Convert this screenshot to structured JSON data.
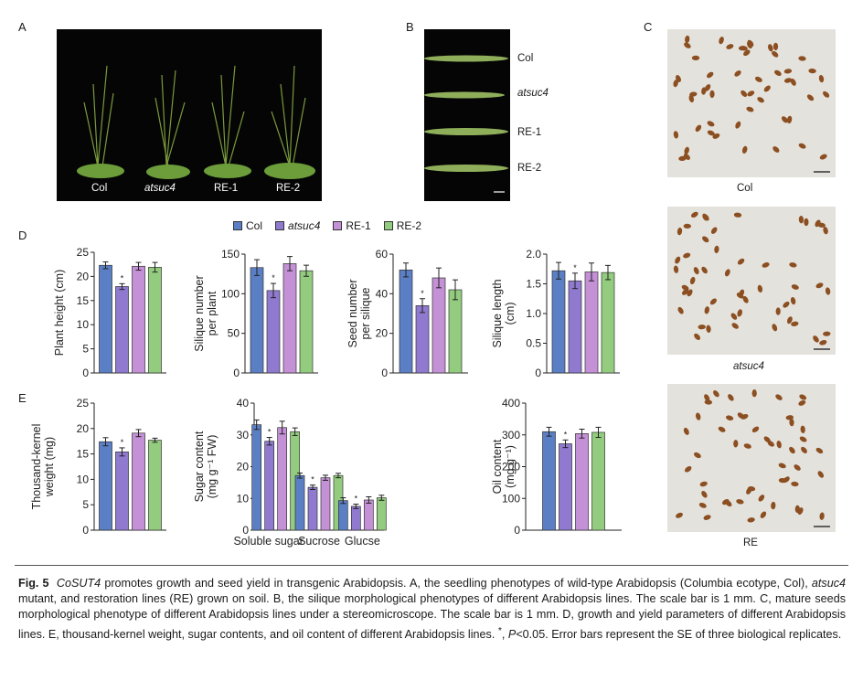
{
  "panels": {
    "A": {
      "letter": "A",
      "labels": [
        "Col",
        "atsuc4",
        "RE-1",
        "RE-2"
      ]
    },
    "B": {
      "letter": "B",
      "labels": [
        "Col",
        "atsuc4",
        "RE-1",
        "RE-2"
      ]
    },
    "C": {
      "letter": "C",
      "labels": [
        "Col",
        "atsuc4",
        "RE"
      ]
    },
    "D": {
      "letter": "D"
    },
    "E": {
      "letter": "E"
    }
  },
  "legend": [
    "Col",
    "atsuc4",
    "RE-1",
    "RE-2"
  ],
  "colors": {
    "Col": "#5b7fc4",
    "atsuc4": "#8f7ad0",
    "RE-1": "#c490d6",
    "RE-2": "#93cc7e"
  },
  "chart_data": [
    {
      "type": "bar",
      "ylabel": "Plant height (cm)",
      "ylim": [
        0,
        25
      ],
      "yticks": [
        "0",
        "5",
        "10",
        "15",
        "20",
        "25"
      ],
      "categories": [
        ""
      ],
      "series": [
        {
          "name": "Col",
          "values": [
            22.3
          ]
        },
        {
          "name": "atsuc4",
          "values": [
            17.9
          ]
        },
        {
          "name": "RE-1",
          "values": [
            22.1
          ]
        },
        {
          "name": "RE-2",
          "values": [
            21.9
          ]
        }
      ],
      "errors": [
        [
          0.7
        ],
        [
          0.6
        ],
        [
          0.8
        ],
        [
          1.0
        ]
      ],
      "significant": [
        false,
        true,
        false,
        false
      ]
    },
    {
      "type": "bar",
      "ylabel": "Silique number per plant",
      "ylim": [
        0,
        150
      ],
      "yticks": [
        "0",
        "50",
        "100",
        "150"
      ],
      "categories": [
        ""
      ],
      "series": [
        {
          "name": "Col",
          "values": [
            133
          ]
        },
        {
          "name": "atsuc4",
          "values": [
            104
          ]
        },
        {
          "name": "RE-1",
          "values": [
            138
          ]
        },
        {
          "name": "RE-2",
          "values": [
            129
          ]
        }
      ],
      "errors": [
        [
          10
        ],
        [
          9
        ],
        [
          9
        ],
        [
          7
        ]
      ],
      "significant": [
        false,
        true,
        false,
        false
      ]
    },
    {
      "type": "bar",
      "ylabel": "Seed number per silique",
      "ylim": [
        0,
        60
      ],
      "yticks": [
        "0",
        "20",
        "40",
        "60"
      ],
      "categories": [
        ""
      ],
      "series": [
        {
          "name": "Col",
          "values": [
            52
          ]
        },
        {
          "name": "atsuc4",
          "values": [
            34
          ]
        },
        {
          "name": "RE-1",
          "values": [
            48
          ]
        },
        {
          "name": "RE-2",
          "values": [
            42
          ]
        }
      ],
      "errors": [
        [
          3.5
        ],
        [
          3.5
        ],
        [
          5
        ],
        [
          5
        ]
      ],
      "significant": [
        false,
        true,
        false,
        false
      ]
    },
    {
      "type": "bar",
      "ylabel": "Silique length (cm)",
      "ylim": [
        0,
        2.0
      ],
      "yticks": [
        "0",
        "0.5",
        "1.0",
        "1.5",
        "2.0"
      ],
      "categories": [
        ""
      ],
      "series": [
        {
          "name": "Col",
          "values": [
            1.72
          ]
        },
        {
          "name": "atsuc4",
          "values": [
            1.55
          ]
        },
        {
          "name": "RE-1",
          "values": [
            1.7
          ]
        },
        {
          "name": "RE-2",
          "values": [
            1.69
          ]
        }
      ],
      "errors": [
        [
          0.14
        ],
        [
          0.13
        ],
        [
          0.15
        ],
        [
          0.12
        ]
      ],
      "significant": [
        false,
        true,
        false,
        false
      ]
    },
    {
      "type": "bar",
      "ylabel": "Thousand-kernel weight (mg)",
      "ylim": [
        0,
        25
      ],
      "yticks": [
        "0",
        "5",
        "10",
        "15",
        "20",
        "25"
      ],
      "categories": [
        ""
      ],
      "series": [
        {
          "name": "Col",
          "values": [
            17.4
          ]
        },
        {
          "name": "atsuc4",
          "values": [
            15.4
          ]
        },
        {
          "name": "RE-1",
          "values": [
            19.1
          ]
        },
        {
          "name": "RE-2",
          "values": [
            17.7
          ]
        }
      ],
      "errors": [
        [
          0.8
        ],
        [
          0.8
        ],
        [
          0.7
        ],
        [
          0.4
        ]
      ],
      "significant": [
        false,
        true,
        false,
        false
      ]
    },
    {
      "type": "bar",
      "ylabel": "Sugar content (mg g⁻¹ FW)",
      "ylim": [
        0,
        40
      ],
      "yticks": [
        "0",
        "10",
        "20",
        "30",
        "40"
      ],
      "categories": [
        "Soluble sugar",
        "Sucrose",
        "Glucse"
      ],
      "series": [
        {
          "name": "Col",
          "values": [
            33.2,
            17.2,
            9.3
          ]
        },
        {
          "name": "atsuc4",
          "values": [
            28.0,
            13.5,
            7.5
          ]
        },
        {
          "name": "RE-1",
          "values": [
            32.3,
            16.5,
            9.5
          ]
        },
        {
          "name": "RE-2",
          "values": [
            31.0,
            17.2,
            10.2
          ]
        }
      ],
      "errors": [
        [
          1.5,
          0.8,
          0.9
        ],
        [
          1.2,
          0.7,
          0.7
        ],
        [
          2.0,
          0.8,
          1.0
        ],
        [
          1.2,
          0.7,
          0.8
        ]
      ],
      "significant": [
        [
          false,
          false,
          false
        ],
        [
          true,
          true,
          true
        ],
        [
          false,
          false,
          false
        ],
        [
          false,
          false,
          false
        ]
      ]
    },
    {
      "type": "bar",
      "ylabel": "Oil content (mg g⁻¹)",
      "ylim": [
        0,
        400
      ],
      "yticks": [
        "0",
        "100",
        "200",
        "300",
        "400"
      ],
      "categories": [
        ""
      ],
      "series": [
        {
          "name": "Col",
          "values": [
            310
          ]
        },
        {
          "name": "atsuc4",
          "values": [
            272
          ]
        },
        {
          "name": "RE-1",
          "values": [
            304
          ]
        },
        {
          "name": "RE-2",
          "values": [
            308
          ]
        }
      ],
      "errors": [
        [
          14
        ],
        [
          12
        ],
        [
          14
        ],
        [
          16
        ]
      ],
      "significant": [
        false,
        true,
        false,
        false
      ]
    }
  ],
  "caption": {
    "fig": "Fig. 5",
    "gene": "CoSUT4",
    "p1": " promotes growth and seed yield in transgenic Arabidopsis.  A, the seedling phenotypes of wild-type Arabidopsis (Columbia ecotype, Col), ",
    "mutant": "atsuc4",
    "p2": " mutant, and restoration lines (RE) grown on soil.  B, the silique morphological phenotypes of different Arabidopsis lines.  The scale bar is 1 mm.  C, mature seeds morphological phenotype of different Arabidopsis lines under a stereomicroscope.  The scale bar is 1 mm.  D, growth and yield parameters of different Arabidopsis lines.  E, thousand-kernel weight, sugar contents, and oil content of different Arabidopsis lines.  ",
    "star": "*",
    "p3": ", ",
    "pval": "P",
    "p4": "<0.05.  Error bars represent the SE of three biological replicates."
  }
}
